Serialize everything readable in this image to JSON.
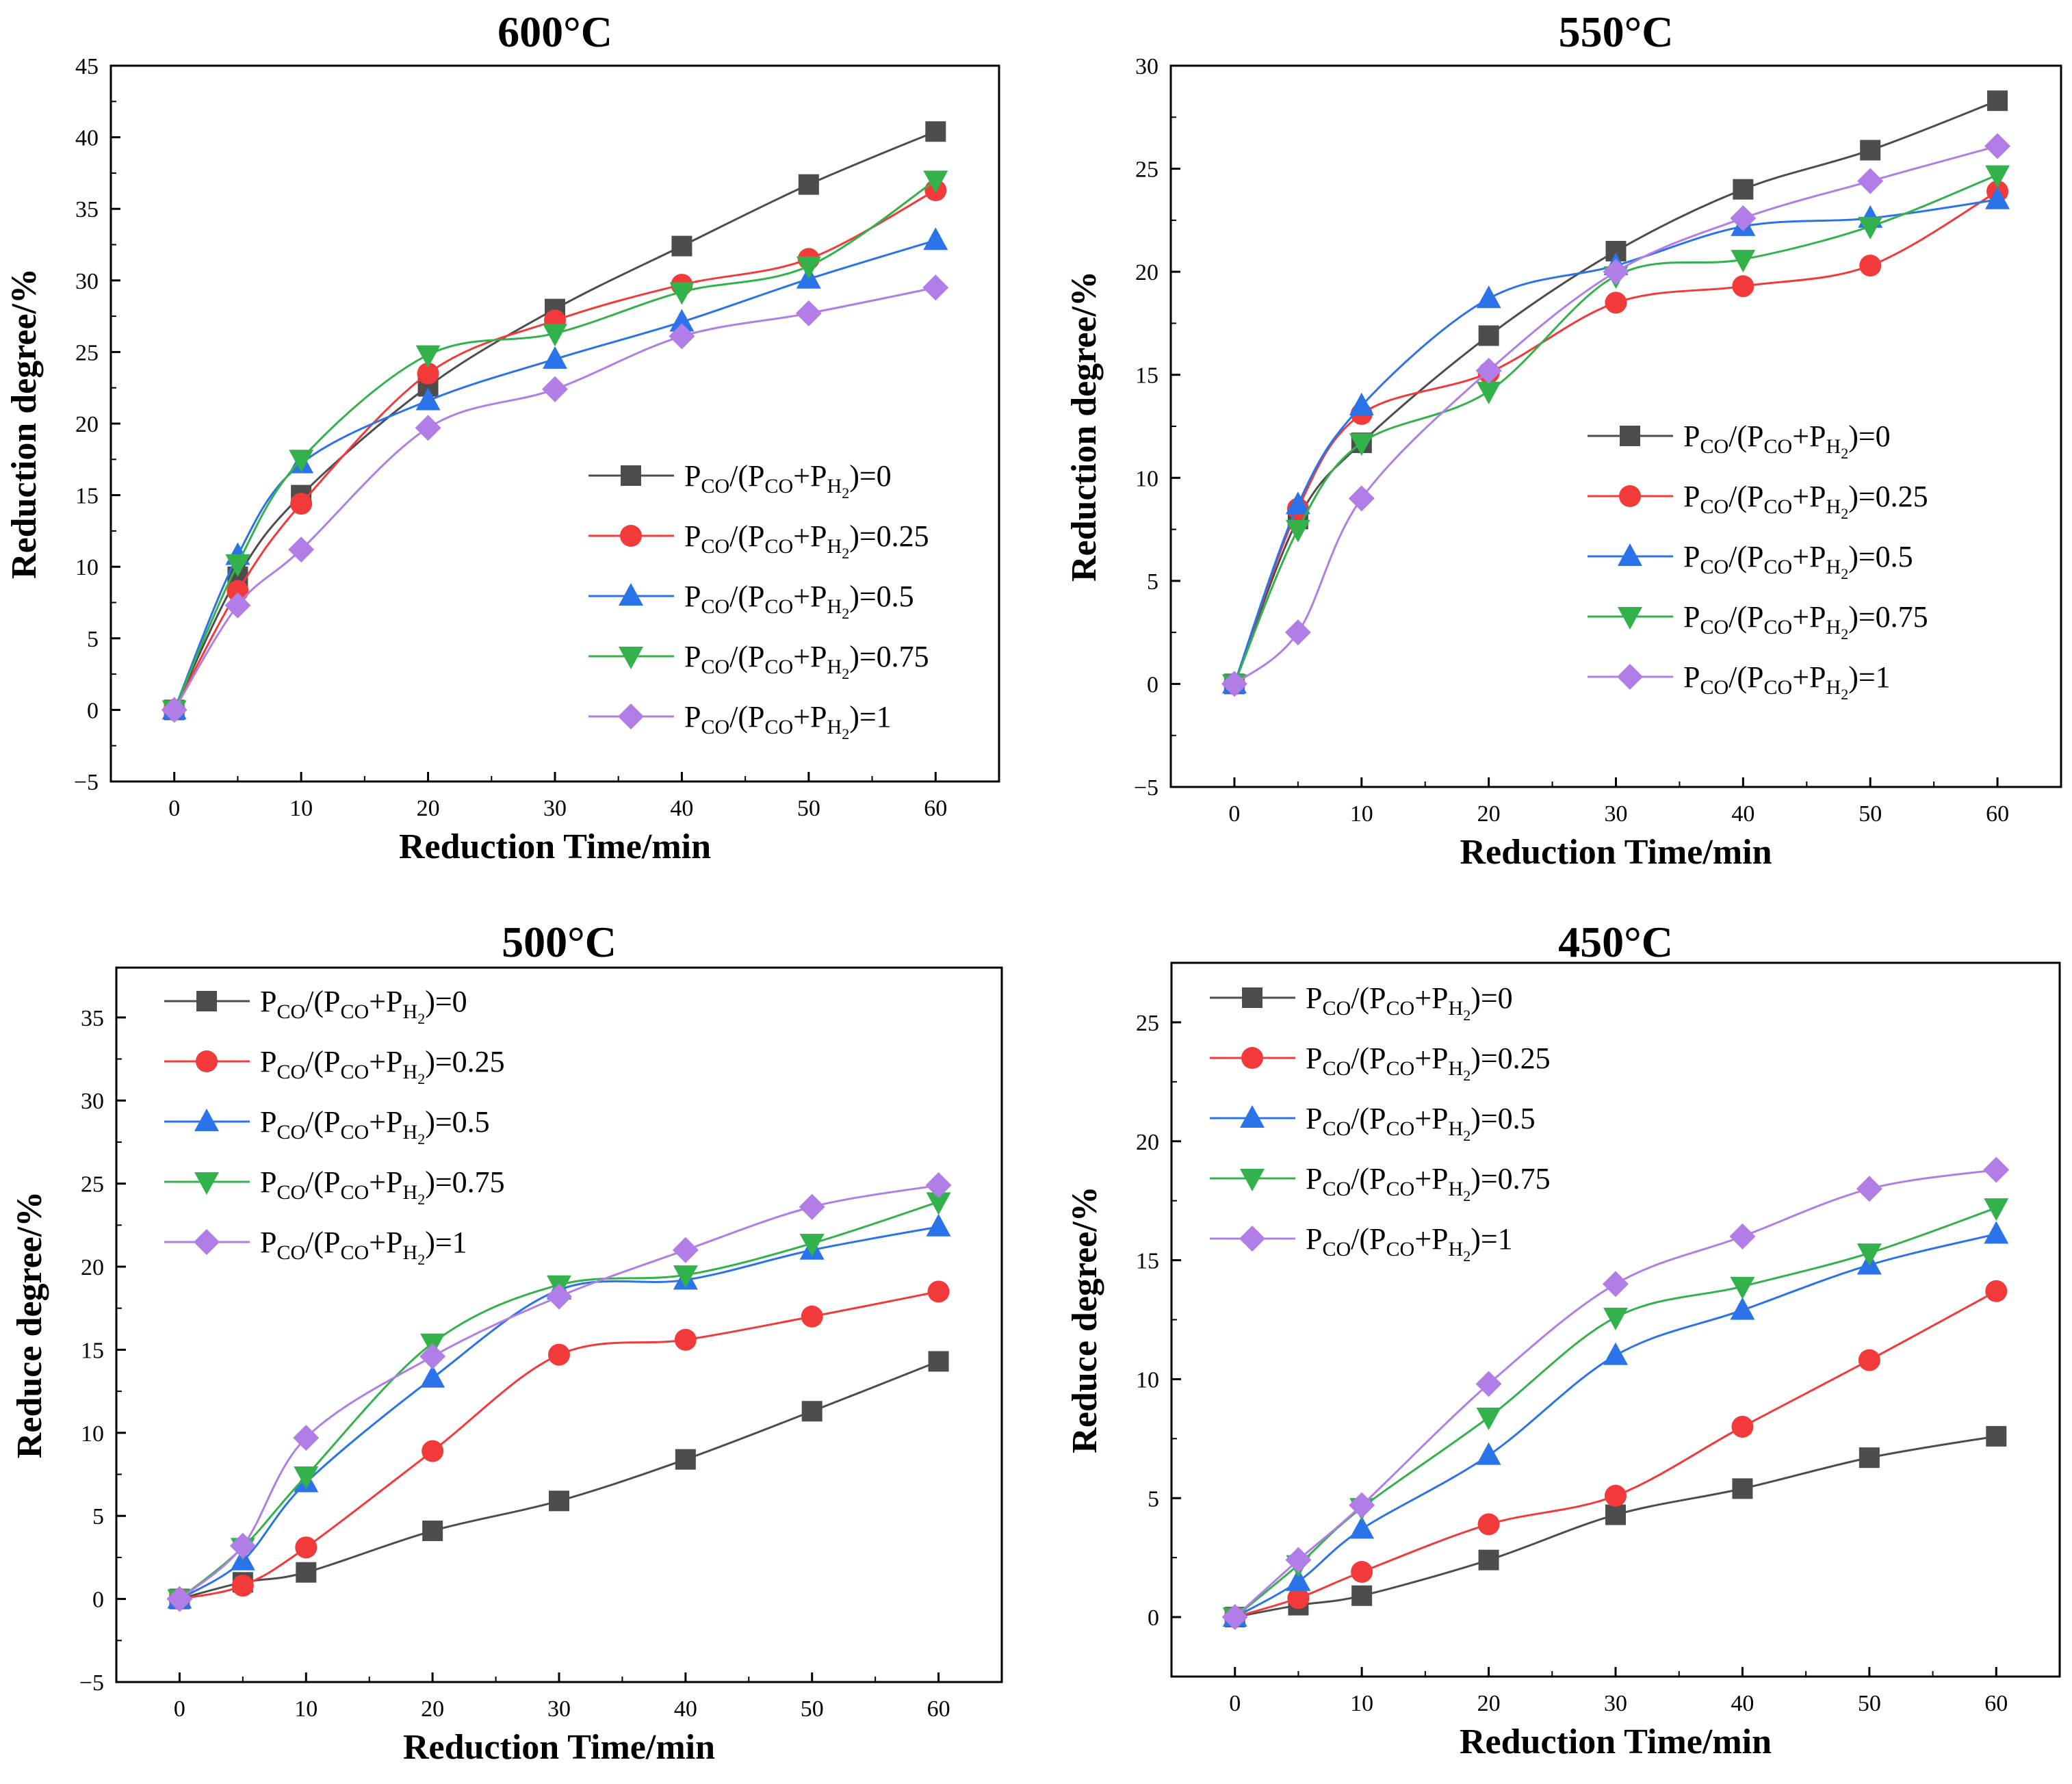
{
  "series_styles": {
    "0": {
      "color": "#4d4d4d",
      "marker": "square"
    },
    "0.25": {
      "color": "#f23a3a",
      "marker": "circle"
    },
    "0.5": {
      "color": "#2a73e8",
      "marker": "triangle-up"
    },
    "0.75": {
      "color": "#33b24c",
      "marker": "triangle-down"
    },
    "1": {
      "color": "#b07ee6",
      "marker": "diamond"
    }
  },
  "legend_labels": [
    {
      "key": "0",
      "value": "0"
    },
    {
      "key": "0.25",
      "value": "0.25"
    },
    {
      "key": "0.5",
      "value": "0.5"
    },
    {
      "key": "0.75",
      "value": "0.75"
    },
    {
      "key": "1",
      "value": "1"
    }
  ],
  "legend_template": {
    "p": "P",
    "co": "CO",
    "h": "H",
    "two": "2",
    "slash_open": "/(",
    "plus": "+",
    "close_eq": ")="
  },
  "chart_data": [
    {
      "type": "line",
      "title": "600°C",
      "xlabel": "Reduction Time/min",
      "ylabel": "Reduction degree/%",
      "x": [
        0,
        5,
        10,
        20,
        30,
        40,
        50,
        60
      ],
      "xticks": [
        0,
        10,
        20,
        30,
        40,
        50,
        60
      ],
      "ylim": [
        -5,
        45
      ],
      "yticks": [
        -5,
        0,
        5,
        10,
        15,
        20,
        25,
        30,
        35,
        40,
        45
      ],
      "xlim": [
        -5,
        65
      ],
      "legend_position": "center-right",
      "series": [
        {
          "key": "0",
          "values": [
            0,
            9.3,
            15.0,
            22.6,
            28.0,
            32.4,
            36.7,
            40.4
          ]
        },
        {
          "key": "0.25",
          "values": [
            0,
            8.3,
            14.4,
            23.5,
            27.2,
            29.7,
            31.5,
            36.3
          ]
        },
        {
          "key": "0.5",
          "values": [
            0,
            10.8,
            17.2,
            21.6,
            24.5,
            27.1,
            30.1,
            32.8
          ]
        },
        {
          "key": "0.75",
          "values": [
            0,
            10.2,
            17.5,
            24.8,
            26.3,
            29.2,
            31.0,
            37.0
          ]
        },
        {
          "key": "1",
          "values": [
            0,
            7.3,
            11.2,
            19.7,
            22.4,
            26.1,
            27.7,
            29.5
          ]
        }
      ]
    },
    {
      "type": "line",
      "title": "550°C",
      "xlabel": "Reduction Time/min",
      "ylabel": "Reduction degree/%",
      "x": [
        0,
        5,
        10,
        20,
        30,
        40,
        50,
        60
      ],
      "xticks": [
        0,
        10,
        20,
        30,
        40,
        50,
        60
      ],
      "ylim": [
        -5,
        30
      ],
      "yticks": [
        -5,
        0,
        5,
        10,
        15,
        20,
        25,
        30
      ],
      "xlim": [
        -5,
        65
      ],
      "legend_position": "center-right",
      "series": [
        {
          "key": "0",
          "values": [
            0,
            8.0,
            11.7,
            16.9,
            21.0,
            24.0,
            25.9,
            28.3
          ]
        },
        {
          "key": "0.25",
          "values": [
            0,
            8.5,
            13.1,
            15.1,
            18.5,
            19.3,
            20.3,
            23.9
          ]
        },
        {
          "key": "0.5",
          "values": [
            0,
            8.7,
            13.5,
            18.7,
            20.3,
            22.2,
            22.6,
            23.5
          ]
        },
        {
          "key": "0.75",
          "values": [
            0,
            7.5,
            11.7,
            14.2,
            19.8,
            20.6,
            22.2,
            24.7
          ]
        },
        {
          "key": "1",
          "values": [
            0,
            2.5,
            9.0,
            15.2,
            20.0,
            22.6,
            24.4,
            26.1
          ]
        }
      ]
    },
    {
      "type": "line",
      "title": "500°C",
      "xlabel": "Reduction Time/min",
      "ylabel": "Reduce degree/%",
      "x": [
        0,
        5,
        10,
        20,
        30,
        40,
        50,
        60
      ],
      "xticks": [
        0,
        10,
        20,
        30,
        40,
        50,
        60
      ],
      "ylim": [
        -5,
        38
      ],
      "yticks": [
        -5,
        0,
        5,
        10,
        15,
        20,
        25,
        30,
        35
      ],
      "xlim": [
        -5,
        65
      ],
      "legend_position": "top-left",
      "series": [
        {
          "key": "0",
          "values": [
            0,
            1.0,
            1.6,
            4.1,
            5.9,
            8.4,
            11.3,
            14.3
          ]
        },
        {
          "key": "0.25",
          "values": [
            0,
            0.8,
            3.1,
            8.9,
            14.7,
            15.6,
            17.0,
            18.5
          ]
        },
        {
          "key": "0.5",
          "values": [
            0,
            2.3,
            7.0,
            13.3,
            18.6,
            19.2,
            21.0,
            22.4
          ]
        },
        {
          "key": "0.75",
          "values": [
            0,
            3.1,
            7.4,
            15.4,
            18.9,
            19.5,
            21.4,
            23.9
          ]
        },
        {
          "key": "1",
          "values": [
            0,
            3.2,
            9.7,
            14.6,
            18.2,
            21.0,
            23.6,
            24.9
          ]
        }
      ]
    },
    {
      "type": "line",
      "title": "450°C",
      "xlabel": "Reduction Time/min",
      "ylabel": "Reduce degree/%",
      "x": [
        0,
        5,
        10,
        20,
        30,
        40,
        50,
        60
      ],
      "xticks": [
        0,
        10,
        20,
        30,
        40,
        50,
        60
      ],
      "ylim": [
        -2.5,
        27.5
      ],
      "yticks": [
        0,
        5,
        10,
        15,
        20,
        25
      ],
      "xlim": [
        -5,
        65
      ],
      "legend_position": "top-left",
      "series": [
        {
          "key": "0",
          "values": [
            0,
            0.5,
            0.9,
            2.4,
            4.3,
            5.4,
            6.7,
            7.6
          ]
        },
        {
          "key": "0.25",
          "values": [
            0,
            0.8,
            1.9,
            3.9,
            5.1,
            8.0,
            10.8,
            13.7
          ]
        },
        {
          "key": "0.5",
          "values": [
            0,
            1.5,
            3.7,
            6.8,
            11.0,
            12.9,
            14.8,
            16.1
          ]
        },
        {
          "key": "0.75",
          "values": [
            0,
            2.2,
            4.6,
            8.4,
            12.6,
            13.9,
            15.3,
            17.2
          ]
        },
        {
          "key": "1",
          "values": [
            0,
            2.4,
            4.7,
            9.8,
            14.0,
            16.0,
            18.0,
            18.8
          ]
        }
      ]
    }
  ]
}
